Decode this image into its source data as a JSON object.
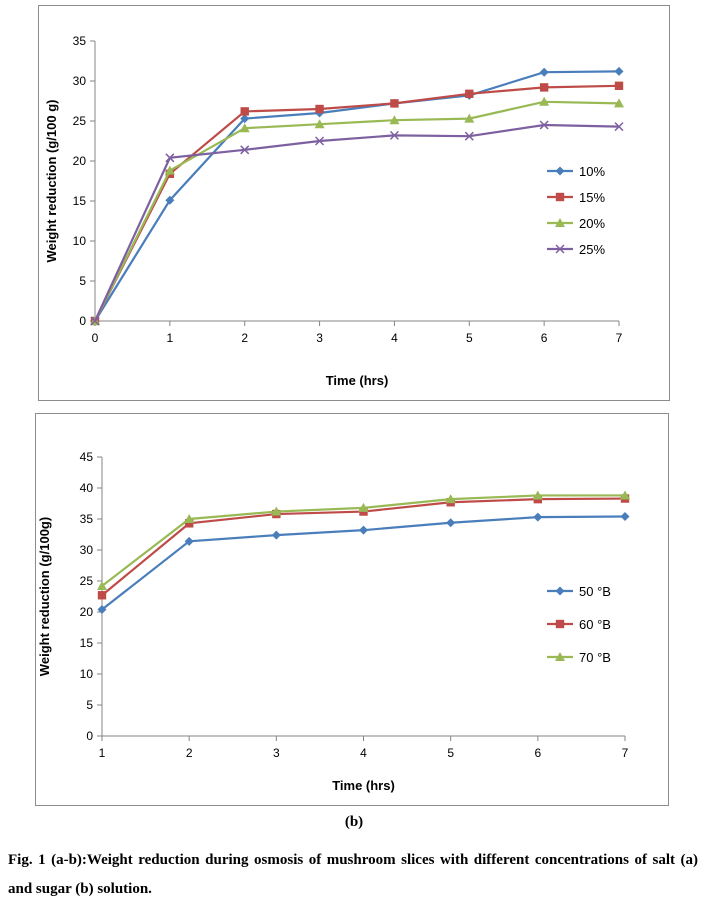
{
  "chart_data": [
    {
      "type": "line",
      "title": "",
      "xlabel": "Time (hrs)",
      "ylabel": "Weight reduction (g/100 g)",
      "xlim": [
        0,
        7
      ],
      "ylim": [
        0,
        35
      ],
      "x_ticks": [
        "0",
        "1",
        "2",
        "3",
        "4",
        "5",
        "6",
        "7"
      ],
      "y_ticks": [
        "0",
        "5",
        "10",
        "15",
        "20",
        "25",
        "30",
        "35"
      ],
      "grid": false,
      "legend_position": "right",
      "x": [
        0,
        1,
        2,
        3,
        4,
        5,
        6,
        7
      ],
      "series": [
        {
          "name": "10%",
          "color": "#4a7ebb",
          "marker": "diamond",
          "values": [
            0,
            15.1,
            25.3,
            26.0,
            27.2,
            28.2,
            31.1,
            31.2
          ]
        },
        {
          "name": "15%",
          "color": "#be4b48",
          "marker": "square",
          "values": [
            0,
            18.4,
            26.2,
            26.5,
            27.2,
            28.4,
            29.2,
            29.4
          ]
        },
        {
          "name": "20%",
          "color": "#98b954",
          "marker": "triangle",
          "values": [
            0,
            18.8,
            24.1,
            24.6,
            25.1,
            25.3,
            27.4,
            27.2
          ]
        },
        {
          "name": "25%",
          "color": "#7d60a0",
          "marker": "x",
          "values": [
            0,
            20.4,
            21.4,
            22.5,
            23.2,
            23.1,
            24.5,
            24.3
          ]
        }
      ]
    },
    {
      "type": "line",
      "title": "",
      "xlabel": "Time (hrs)",
      "ylabel": "Weight reduction (g/100g)",
      "xlim": [
        1,
        7
      ],
      "ylim": [
        0,
        45
      ],
      "x_ticks": [
        "1",
        "2",
        "3",
        "4",
        "5",
        "6",
        "7"
      ],
      "y_ticks": [
        "0",
        "5",
        "10",
        "15",
        "20",
        "25",
        "30",
        "35",
        "40",
        "45"
      ],
      "grid": false,
      "legend_position": "right",
      "x": [
        1,
        2,
        3,
        4,
        5,
        6,
        7
      ],
      "series": [
        {
          "name": "50 °B",
          "color": "#4a7ebb",
          "marker": "diamond",
          "values": [
            20.4,
            31.4,
            32.4,
            33.2,
            34.4,
            35.3,
            35.4
          ]
        },
        {
          "name": "60 °B",
          "color": "#be4b48",
          "marker": "square",
          "values": [
            22.7,
            34.3,
            35.8,
            36.2,
            37.7,
            38.2,
            38.3
          ]
        },
        {
          "name": "70 °B",
          "color": "#98b954",
          "marker": "triangle",
          "values": [
            24.2,
            35.0,
            36.2,
            36.8,
            38.2,
            38.8,
            38.8
          ]
        }
      ]
    }
  ],
  "figure": {
    "panel_b_label": "(b)",
    "caption": "Fig. 1 (a-b):Weight reduction during osmosis of mushroom slices with different concentrations of salt (a) and sugar (b) solution."
  }
}
